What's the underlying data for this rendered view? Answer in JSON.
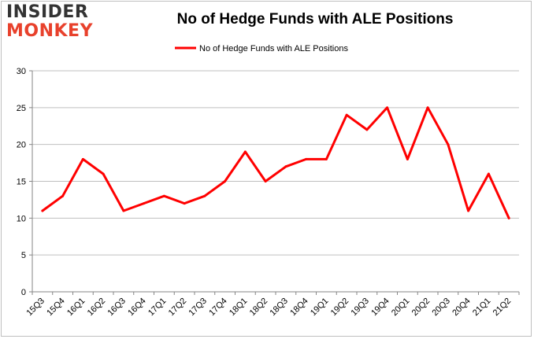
{
  "logo": {
    "line1": "INSIDER",
    "line2": "MONKEY",
    "accent_color": "#e8412c"
  },
  "chart_data": {
    "type": "line",
    "title": "No of Hedge Funds with ALE Positions",
    "legend": {
      "position": "top-center"
    },
    "categories": [
      "15Q3",
      "15Q4",
      "16Q1",
      "16Q2",
      "16Q3",
      "16Q4",
      "17Q1",
      "17Q2",
      "17Q3",
      "17Q4",
      "18Q1",
      "18Q2",
      "18Q3",
      "18Q4",
      "19Q1",
      "19Q2",
      "19Q3",
      "19Q4",
      "20Q1",
      "20Q2",
      "20Q3",
      "20Q4",
      "21Q1",
      "21Q2"
    ],
    "series": [
      {
        "name": "No of Hedge Funds with ALE Positions",
        "color": "#ff0000",
        "values": [
          11,
          13,
          18,
          16,
          11,
          12,
          13,
          12,
          13,
          15,
          19,
          15,
          17,
          18,
          18,
          24,
          22,
          25,
          18,
          25,
          20,
          11,
          16,
          10
        ]
      }
    ],
    "ylim": [
      0,
      30
    ],
    "yticks": [
      0,
      5,
      10,
      15,
      20,
      25,
      30
    ],
    "grid": true,
    "xlabel": "",
    "ylabel": ""
  }
}
